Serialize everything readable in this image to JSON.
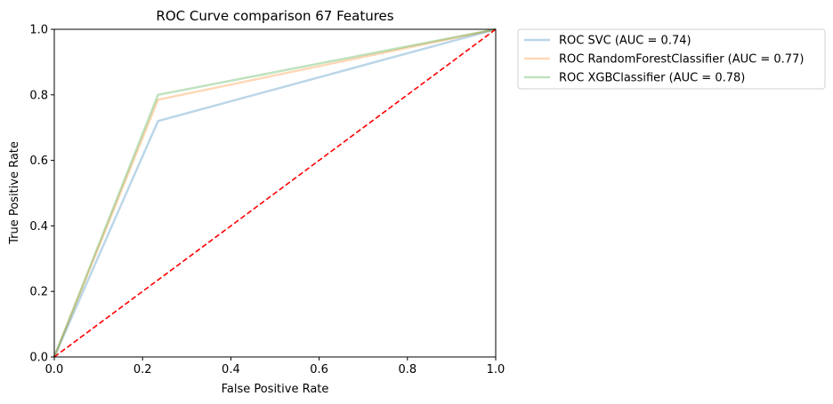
{
  "chart_data": {
    "type": "line",
    "title": "ROC Curve comparison 67 Features",
    "xlabel": "False Positive Rate",
    "ylabel": "True Positive Rate",
    "xlim": [
      0.0,
      1.0
    ],
    "ylim": [
      0.0,
      1.0
    ],
    "xticks": [
      "0.0",
      "0.2",
      "0.4",
      "0.6",
      "0.8",
      "1.0"
    ],
    "yticks": [
      "0.0",
      "0.2",
      "0.4",
      "0.6",
      "0.8",
      "1.0"
    ],
    "grid": false,
    "legend_position": "outside upper right",
    "series": [
      {
        "name": "ROC SVC (AUC = 0.74)",
        "color": "#1f77b4",
        "opacity": 0.3,
        "x": [
          0.0,
          0.235,
          1.0
        ],
        "y": [
          0.0,
          0.72,
          1.0
        ]
      },
      {
        "name": "ROC RandomForestClassifier (AUC = 0.77)",
        "color": "#ff7f0e",
        "opacity": 0.3,
        "x": [
          0.0,
          0.235,
          1.0
        ],
        "y": [
          0.0,
          0.785,
          1.0
        ]
      },
      {
        "name": "ROC XGBClassifier (AUC = 0.78)",
        "color": "#2ca02c",
        "opacity": 0.3,
        "x": [
          0.0,
          0.235,
          1.0
        ],
        "y": [
          0.0,
          0.8,
          1.0
        ]
      }
    ],
    "reference_line": {
      "x": [
        0.0,
        1.0
      ],
      "y": [
        0.0,
        1.0
      ],
      "color": "#ff0000",
      "style": "dashed"
    }
  }
}
